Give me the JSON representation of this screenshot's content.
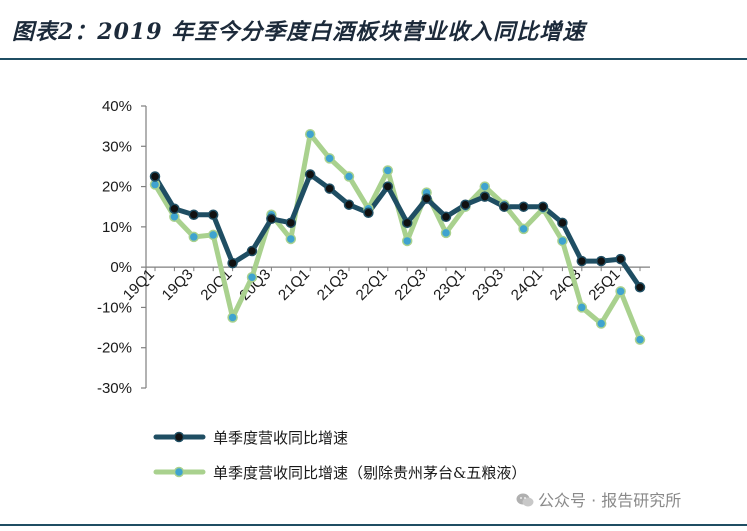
{
  "title": "图表2：2019 年至今分季度白酒板块营业收入同比增速",
  "watermark": "公众号 · 报告研究所",
  "colors": {
    "title_rule": "#1f4e63",
    "series1_line": "#1f4e63",
    "series1_marker": "#111111",
    "series2_line": "#a9d18e",
    "series2_marker": "#3fa3cf",
    "axis": "#7f7f7f"
  },
  "chart_data": {
    "type": "line",
    "x": [
      "19Q1",
      "19Q2",
      "19Q3",
      "19Q4",
      "20Q1",
      "20Q2",
      "20Q3",
      "20Q4",
      "21Q1",
      "21Q2",
      "21Q3",
      "21Q4",
      "22Q1",
      "22Q2",
      "22Q3",
      "22Q4",
      "23Q1",
      "23Q2",
      "23Q3",
      "23Q4",
      "24Q1",
      "24Q2",
      "24Q3",
      "24Q4",
      "25Q1",
      "25Q2"
    ],
    "x_tick_labels": [
      "19Q1",
      "",
      "19Q3",
      "",
      "20Q1",
      "",
      "20Q3",
      "",
      "21Q1",
      "",
      "21Q3",
      "",
      "22Q1",
      "",
      "22Q3",
      "",
      "23Q1",
      "",
      "23Q3",
      "",
      "24Q1",
      "",
      "24Q3",
      "",
      "25Q1",
      ""
    ],
    "series": [
      {
        "name": "单季度营收同比增速",
        "values": [
          22.5,
          14.5,
          13,
          13,
          1,
          4,
          12,
          11,
          23,
          19.5,
          15.5,
          13.5,
          20,
          11,
          17,
          12.5,
          15.5,
          17.5,
          15,
          15,
          15,
          11,
          1.5,
          1.5,
          2,
          -5
        ]
      },
      {
        "name": "单季度营收同比增速（剔除贵州茅台&五粮液）",
        "values": [
          20.5,
          12.5,
          7.5,
          8,
          -12.5,
          -2.5,
          13,
          7,
          33,
          27,
          22.5,
          14.5,
          24,
          6.5,
          18.5,
          8.5,
          15,
          20,
          15.5,
          9.5,
          14.5,
          6.5,
          -10,
          -14,
          -6,
          -18
        ]
      }
    ],
    "yticks": [
      "40%",
      "30%",
      "20%",
      "10%",
      "0%",
      "-10%",
      "-20%",
      "-30%"
    ],
    "ylim": [
      -30,
      40
    ],
    "y_unit": "%",
    "legend_position": "bottom-left",
    "grid": false
  }
}
